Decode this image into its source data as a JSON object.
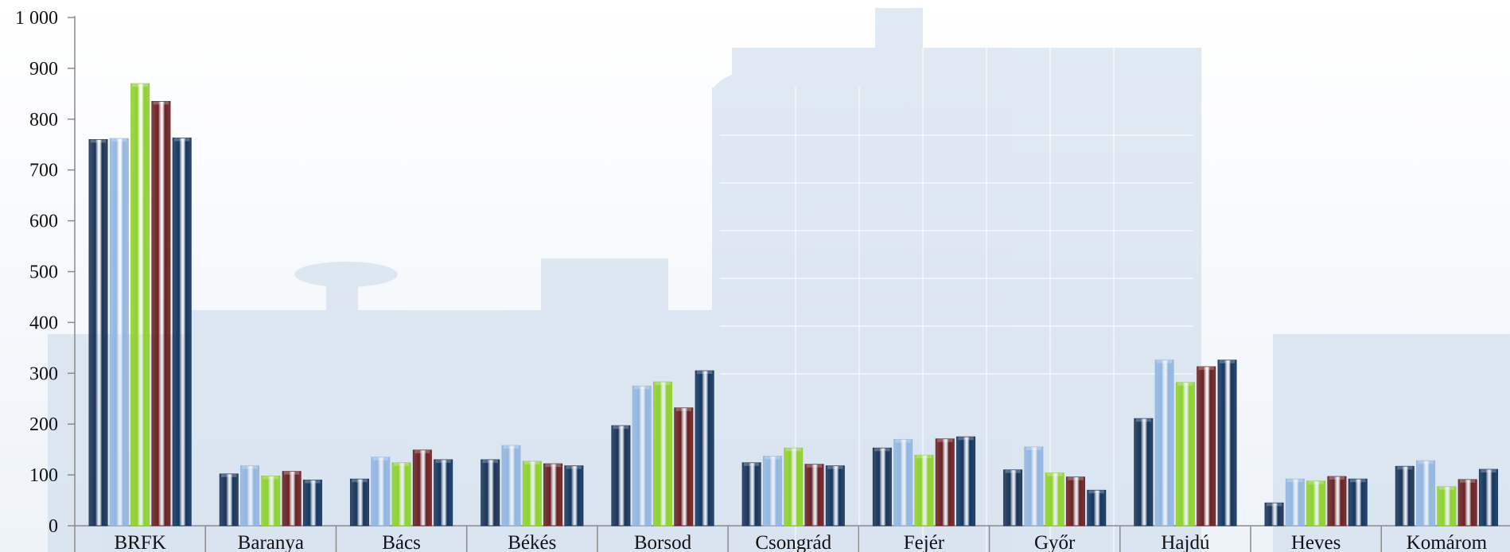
{
  "colors": {
    "series": [
      "#1b3558",
      "#93b6e0",
      "#8fd12f",
      "#6b2224",
      "#15365f"
    ],
    "axis": "#8a8a8a",
    "background_tint": "#c9d9ea"
  },
  "background": {
    "image": "building-photo-watermark"
  },
  "chart_data": {
    "type": "bar",
    "title": "",
    "xlabel": "",
    "ylabel": "",
    "ylim": [
      0,
      1000
    ],
    "yticks": [
      0,
      100,
      200,
      300,
      400,
      500,
      600,
      700,
      800,
      900,
      1000
    ],
    "ytick_labels": [
      "0",
      "100",
      "200",
      "300",
      "400",
      "500",
      "600",
      "700",
      "800",
      "900",
      "1 000"
    ],
    "categories": [
      "BRFK",
      "Baranya",
      "Bács",
      "Békés",
      "Borsod",
      "Csongrád",
      "Fejér",
      "Győr",
      "Hajdú",
      "Heves",
      "Komárom"
    ],
    "series": [
      {
        "values": [
          760,
          102,
          92,
          130,
          197,
          124,
          153,
          110,
          211,
          45,
          117
        ]
      },
      {
        "values": [
          762,
          118,
          135,
          158,
          275,
          137,
          170,
          155,
          326,
          92,
          128
        ]
      },
      {
        "values": [
          870,
          98,
          124,
          127,
          283,
          153,
          139,
          104,
          282,
          88,
          77
        ]
      },
      {
        "values": [
          835,
          107,
          149,
          122,
          232,
          121,
          171,
          96,
          313,
          97,
          91
        ]
      },
      {
        "values": [
          763,
          90,
          130,
          118,
          305,
          118,
          175,
          70,
          326,
          92,
          111
        ]
      }
    ],
    "legend": "none",
    "grid": false
  }
}
